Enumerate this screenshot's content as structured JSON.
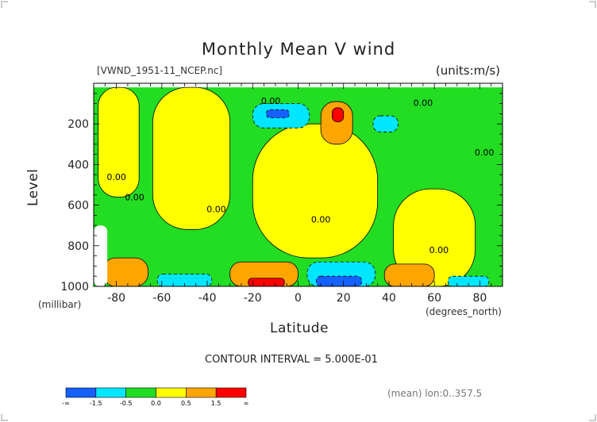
{
  "chart_data": {
    "type": "heatmap",
    "title": "Monthly Mean V wind",
    "subtitle_left": "[VWND_1951-11_NCEP.nc]",
    "subtitle_right": "(units:m/s)",
    "xlabel": "Latitude",
    "xunit": "(degrees_north)",
    "ylabel": "Level",
    "yunit": "(millibar)",
    "xlim": [
      -90,
      90
    ],
    "ylim": [
      1000,
      0
    ],
    "x_ticks": [
      -80,
      -60,
      -40,
      -20,
      0,
      20,
      40,
      60,
      80
    ],
    "y_ticks": [
      200,
      400,
      600,
      800,
      1000
    ],
    "contour_interval_text": "CONTOUR INTERVAL = 5.000E-01",
    "footer_note": "(mean) lon:0..357.5",
    "contour_labels": [
      {
        "text": "0.00",
        "x": -12,
        "y": 85
      },
      {
        "text": "0.00",
        "x": 55,
        "y": 95
      },
      {
        "text": "0.00",
        "x": 82,
        "y": 340
      },
      {
        "text": "0.00",
        "x": -80,
        "y": 460
      },
      {
        "text": "0.00",
        "x": -72,
        "y": 560
      },
      {
        "text": "0.00",
        "x": -36,
        "y": 620
      },
      {
        "text": "0.00",
        "x": 10,
        "y": 670
      },
      {
        "text": "0.00",
        "x": 62,
        "y": 820
      }
    ],
    "colorbar": {
      "colors": [
        "#1560ff",
        "#00e6ff",
        "#22dd22",
        "#ffff00",
        "#ffa500",
        "#ff0000"
      ],
      "labels": [
        "-∞",
        "-1.5",
        "-0.5",
        "0.0",
        "0.5",
        "1.5",
        "∞"
      ]
    },
    "regions": [
      {
        "level": "green",
        "lat": [
          -90,
          90
        ],
        "lev": [
          20,
          1000
        ]
      },
      {
        "level": "yellow",
        "lat": [
          -88,
          -70
        ],
        "lev": [
          20,
          560
        ]
      },
      {
        "level": "yellow",
        "lat": [
          -64,
          -30
        ],
        "lev": [
          20,
          720
        ]
      },
      {
        "level": "yellow",
        "lat": [
          -20,
          35
        ],
        "lev": [
          200,
          860
        ]
      },
      {
        "level": "yellow",
        "lat": [
          42,
          78
        ],
        "lev": [
          520,
          1000
        ]
      },
      {
        "level": "cyan",
        "lat": [
          -20,
          5
        ],
        "lev": [
          100,
          220
        ]
      },
      {
        "level": "blue",
        "lat": [
          -14,
          -4
        ],
        "lev": [
          130,
          170
        ]
      },
      {
        "level": "orange",
        "lat": [
          10,
          24
        ],
        "lev": [
          90,
          300
        ]
      },
      {
        "level": "red",
        "lat": [
          15,
          20
        ],
        "lev": [
          120,
          190
        ]
      },
      {
        "level": "cyan",
        "lat": [
          33,
          44
        ],
        "lev": [
          160,
          240
        ]
      },
      {
        "level": "orange",
        "lat": [
          -30,
          0
        ],
        "lev": [
          880,
          1000
        ]
      },
      {
        "level": "red",
        "lat": [
          -22,
          -6
        ],
        "lev": [
          960,
          1000
        ]
      },
      {
        "level": "cyan",
        "lat": [
          4,
          34
        ],
        "lev": [
          880,
          1000
        ]
      },
      {
        "level": "blue",
        "lat": [
          8,
          28
        ],
        "lev": [
          950,
          1000
        ]
      },
      {
        "level": "cyan",
        "lat": [
          -62,
          -38
        ],
        "lev": [
          940,
          1000
        ]
      },
      {
        "level": "orange",
        "lat": [
          -86,
          -66
        ],
        "lev": [
          860,
          1000
        ]
      },
      {
        "level": "orange",
        "lat": [
          38,
          60
        ],
        "lev": [
          890,
          1000
        ]
      },
      {
        "level": "cyan",
        "lat": [
          66,
          84
        ],
        "lev": [
          950,
          1000
        ]
      },
      {
        "level": "white",
        "lat": [
          -90,
          -84
        ],
        "lev": [
          700,
          1000
        ]
      }
    ]
  }
}
